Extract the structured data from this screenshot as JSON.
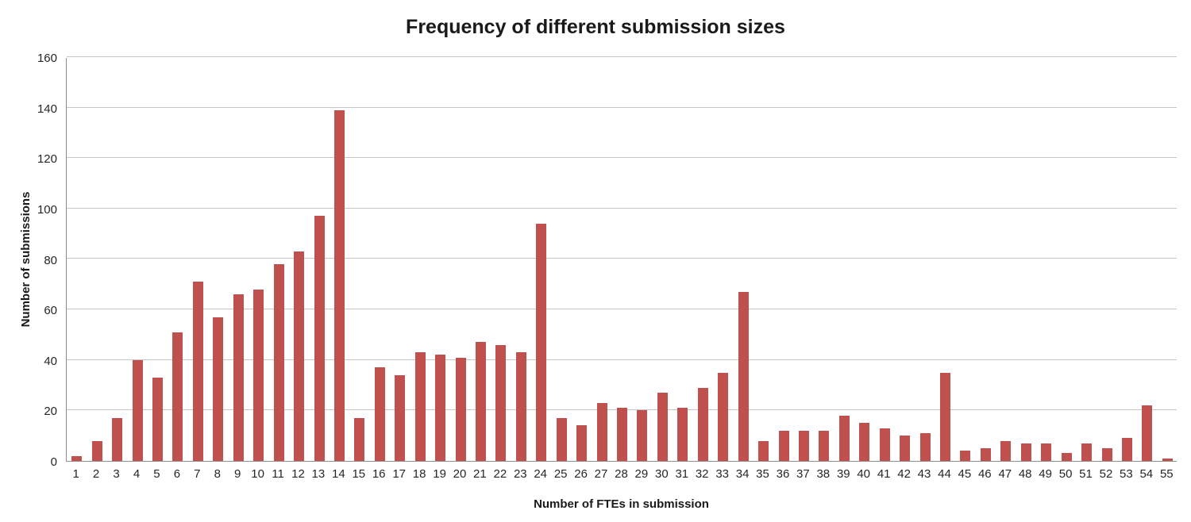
{
  "chart_data": {
    "type": "bar",
    "title": "Frequency of different submission sizes",
    "xlabel": "Number of FTEs in submission",
    "ylabel": "Number of submissions",
    "categories": [
      1,
      2,
      3,
      4,
      5,
      6,
      7,
      8,
      9,
      10,
      11,
      12,
      13,
      14,
      15,
      16,
      17,
      18,
      19,
      20,
      21,
      22,
      23,
      24,
      25,
      26,
      27,
      28,
      29,
      30,
      31,
      32,
      33,
      34,
      35,
      36,
      37,
      38,
      39,
      40,
      41,
      42,
      43,
      44,
      45,
      46,
      47,
      48,
      49,
      50,
      51,
      52,
      53,
      54,
      55
    ],
    "values": [
      2,
      8,
      17,
      40,
      33,
      51,
      71,
      57,
      66,
      68,
      78,
      83,
      97,
      139,
      17,
      37,
      34,
      43,
      42,
      41,
      47,
      46,
      43,
      94,
      17,
      14,
      23,
      21,
      20,
      27,
      21,
      29,
      35,
      67,
      8,
      12,
      12,
      12,
      18,
      15,
      13,
      10,
      11,
      35,
      4,
      5,
      8,
      7,
      7,
      3,
      7,
      5,
      9,
      22,
      1
    ],
    "ylim": [
      0,
      160
    ],
    "y_ticks": [
      0,
      20,
      40,
      60,
      80,
      100,
      120,
      140,
      160
    ],
    "grid": "horizontal",
    "legend_position": "none",
    "bar_color": "#c0504d",
    "gridline_color": "#c6c6c6",
    "axis_color": "#8e8e8e",
    "text_color": "#262626"
  }
}
